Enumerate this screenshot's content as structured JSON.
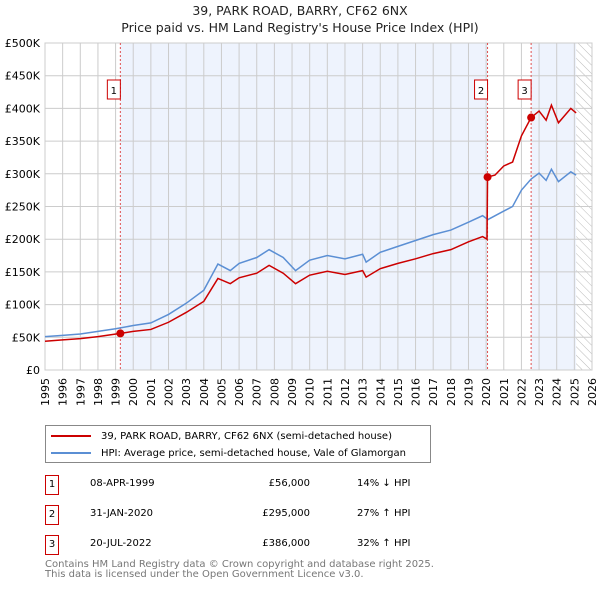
{
  "title": "39, PARK ROAD, BARRY, CF62 6NX",
  "subtitle": "Price paid vs. HM Land Registry's House Price Index (HPI)",
  "chart_data": {
    "type": "line",
    "title": "39, PARK ROAD, BARRY, CF62 6NX — Price paid vs. HM Land Registry's House Price Index (HPI)",
    "xlim": [
      1995,
      2026
    ],
    "ylim": [
      0,
      500000
    ],
    "x_ticks": [
      "1995",
      "1996",
      "1997",
      "1998",
      "1999",
      "2000",
      "2001",
      "2002",
      "2003",
      "2004",
      "2005",
      "2006",
      "2007",
      "2008",
      "2009",
      "2010",
      "2011",
      "2012",
      "2013",
      "2014",
      "2015",
      "2016",
      "2017",
      "2018",
      "2019",
      "2020",
      "2021",
      "2022",
      "2023",
      "2024",
      "2025",
      "2026"
    ],
    "y_ticks": [
      {
        "v": 0,
        "label": "£0"
      },
      {
        "v": 50000,
        "label": "£50K"
      },
      {
        "v": 100000,
        "label": "£100K"
      },
      {
        "v": 150000,
        "label": "£150K"
      },
      {
        "v": 200000,
        "label": "£200K"
      },
      {
        "v": 250000,
        "label": "£250K"
      },
      {
        "v": 300000,
        "label": "£300K"
      },
      {
        "v": 350000,
        "label": "£350K"
      },
      {
        "v": 400000,
        "label": "£400K"
      },
      {
        "v": 450000,
        "label": "£450K"
      },
      {
        "v": 500000,
        "label": "£500K"
      }
    ],
    "grid": true,
    "series": [
      {
        "name": "39, PARK ROAD, BARRY, CF62 6NX (semi-detached house)",
        "color": "#cc0000",
        "points": [
          [
            1995,
            44000
          ],
          [
            1996,
            46000
          ],
          [
            1997,
            48000
          ],
          [
            1998,
            51000
          ],
          [
            1999.27,
            56000
          ],
          [
            2000,
            59000
          ],
          [
            2001,
            62000
          ],
          [
            2002,
            73000
          ],
          [
            2003,
            88000
          ],
          [
            2004,
            105000
          ],
          [
            2004.8,
            140000
          ],
          [
            2005.5,
            132000
          ],
          [
            2006,
            141000
          ],
          [
            2007,
            148000
          ],
          [
            2007.7,
            160000
          ],
          [
            2008.5,
            148000
          ],
          [
            2009.2,
            132000
          ],
          [
            2010,
            145000
          ],
          [
            2011,
            151000
          ],
          [
            2012,
            146000
          ],
          [
            2013,
            152000
          ],
          [
            2013.2,
            142000
          ],
          [
            2014,
            155000
          ],
          [
            2015,
            163000
          ],
          [
            2016,
            170000
          ],
          [
            2017,
            178000
          ],
          [
            2018,
            184000
          ],
          [
            2019,
            196000
          ],
          [
            2019.8,
            204000
          ],
          [
            2020.05,
            200000
          ],
          [
            2020.08,
            295000
          ],
          [
            2020.5,
            298000
          ],
          [
            2021,
            312000
          ],
          [
            2021.5,
            318000
          ],
          [
            2022,
            358000
          ],
          [
            2022.55,
            386000
          ],
          [
            2023,
            396000
          ],
          [
            2023.4,
            382000
          ],
          [
            2023.7,
            405000
          ],
          [
            2024.1,
            378000
          ],
          [
            2024.8,
            400000
          ],
          [
            2025.1,
            393000
          ]
        ]
      },
      {
        "name": "HPI: Average price, semi-detached house, Vale of Glamorgan",
        "color": "#5b8fd4",
        "points": [
          [
            1995,
            51000
          ],
          [
            1996,
            53000
          ],
          [
            1997,
            55000
          ],
          [
            1998,
            59000
          ],
          [
            1999,
            63000
          ],
          [
            2000,
            68000
          ],
          [
            2001,
            72000
          ],
          [
            2002,
            85000
          ],
          [
            2003,
            102000
          ],
          [
            2004,
            122000
          ],
          [
            2004.8,
            162000
          ],
          [
            2005.5,
            152000
          ],
          [
            2006,
            163000
          ],
          [
            2007,
            172000
          ],
          [
            2007.7,
            184000
          ],
          [
            2008.5,
            172000
          ],
          [
            2009.2,
            152000
          ],
          [
            2010,
            168000
          ],
          [
            2011,
            175000
          ],
          [
            2012,
            170000
          ],
          [
            2013,
            177000
          ],
          [
            2013.2,
            165000
          ],
          [
            2014,
            180000
          ],
          [
            2015,
            189000
          ],
          [
            2016,
            198000
          ],
          [
            2017,
            207000
          ],
          [
            2018,
            214000
          ],
          [
            2019,
            226000
          ],
          [
            2019.8,
            236000
          ],
          [
            2020.1,
            230000
          ],
          [
            2021,
            243000
          ],
          [
            2021.5,
            250000
          ],
          [
            2022,
            275000
          ],
          [
            2022.55,
            292000
          ],
          [
            2023,
            301000
          ],
          [
            2023.4,
            290000
          ],
          [
            2023.7,
            307000
          ],
          [
            2024.1,
            288000
          ],
          [
            2024.8,
            303000
          ],
          [
            2025.1,
            298000
          ]
        ]
      }
    ],
    "transactions": [
      {
        "id": "1",
        "date": "08-APR-1999",
        "x": 1999.27,
        "price": 56000,
        "price_label": "£56,000",
        "hpi": "14% ↓ HPI"
      },
      {
        "id": "2",
        "date": "31-JAN-2020",
        "x": 2020.08,
        "price": 295000,
        "price_label": "£295,000",
        "hpi": "27% ↑ HPI"
      },
      {
        "id": "3",
        "date": "20-JUL-2022",
        "x": 2022.55,
        "price": 386000,
        "price_label": "£386,000",
        "hpi": "32% ↑ HPI"
      }
    ],
    "shaded_ranges": [
      [
        1999.27,
        2020.08
      ],
      [
        2022.55,
        2025.1
      ]
    ],
    "forecast_hatch_from": 2025.1,
    "legend_position": "below"
  },
  "footer": {
    "line1": "Contains HM Land Registry data © Crown copyright and database right 2025.",
    "line2": "This data is licensed under the Open Government Licence v3.0."
  }
}
